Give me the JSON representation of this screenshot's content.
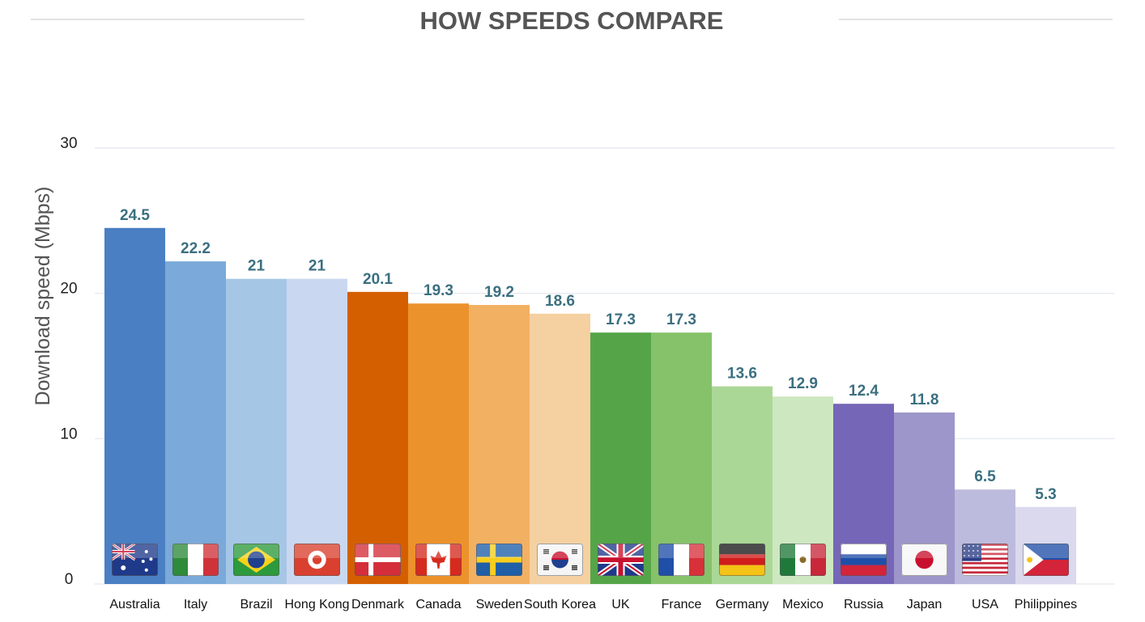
{
  "chart_data": {
    "type": "bar",
    "title": "HOW SPEEDS COMPARE",
    "ylabel": "Download speed (Mbps)",
    "xlabel": "",
    "ylim": [
      0,
      30
    ],
    "yticks": [
      0,
      10,
      20,
      30
    ],
    "grid": true,
    "categories": [
      "Australia",
      "Italy",
      "Brazil",
      "Hong Kong",
      "Denmark",
      "Canada",
      "Sweden",
      "South Korea",
      "UK",
      "France",
      "Germany",
      "Mexico",
      "Russia",
      "Japan",
      "USA",
      "Philippines"
    ],
    "values": [
      24.5,
      22.2,
      21,
      21,
      20.1,
      19.3,
      19.2,
      18.6,
      17.3,
      17.3,
      13.6,
      12.9,
      12.4,
      11.8,
      6.5,
      5.3
    ],
    "value_labels": [
      "24.5",
      "22.2",
      "21",
      "21",
      "20.1",
      "19.3",
      "19.2",
      "18.6",
      "17.3",
      "17.3",
      "13.6",
      "12.9",
      "12.4",
      "11.8",
      "6.5",
      "5.3"
    ],
    "bar_colors": [
      "#4a7fc3",
      "#7aa9da",
      "#a6c6e6",
      "#c9d8f0",
      "#d45f00",
      "#ec922d",
      "#f2b062",
      "#f5d0a0",
      "#55a548",
      "#86c26a",
      "#aad796",
      "#cde8c0",
      "#7566b8",
      "#9d96ca",
      "#bdbbdd",
      "#dad9ee"
    ],
    "flags": [
      "australia-flag",
      "italy-flag",
      "brazil-flag",
      "hong-kong-flag",
      "denmark-flag",
      "canada-flag",
      "sweden-flag",
      "south-korea-flag",
      "uk-flag",
      "france-flag",
      "germany-flag",
      "mexico-flag",
      "russia-flag",
      "japan-flag",
      "usa-flag",
      "philippines-flag"
    ]
  },
  "colors": {
    "title": "#555555",
    "grid": "#e3e8ef",
    "value_label": "#3b6f80"
  }
}
